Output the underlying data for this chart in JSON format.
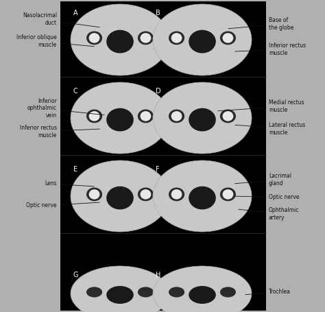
{
  "background_color": "#000000",
  "label_color": "#000000",
  "panel_label_color": "#333333",
  "figure_bg": "#d0d0d0",
  "title": "",
  "panels": [
    {
      "label": "A",
      "col": 0,
      "row": 0
    },
    {
      "label": "B",
      "col": 1,
      "row": 0
    },
    {
      "label": "C",
      "col": 0,
      "row": 1
    },
    {
      "label": "D",
      "col": 1,
      "row": 1
    },
    {
      "label": "E",
      "col": 0,
      "row": 2
    },
    {
      "label": "F",
      "col": 1,
      "row": 2
    },
    {
      "label": "G",
      "col": 0,
      "row": 3
    },
    {
      "label": "H",
      "col": 1,
      "row": 3
    }
  ],
  "left_annotations": [
    {
      "row": 0,
      "lines": [
        "Nasolacrimal\nduct",
        "Inferior oblique\nmuscle"
      ]
    },
    {
      "row": 1,
      "lines": [
        "Inferior\nophthalmic\nvein",
        "Inferior rectus\nmuscle"
      ]
    },
    {
      "row": 2,
      "lines": [
        "Lens",
        "Optic nerve"
      ]
    },
    {
      "row": 3,
      "lines": []
    }
  ],
  "right_annotations": [
    {
      "row": 0,
      "lines": [
        "Base of\nthe globe",
        "Inferior rectus\nmuscle"
      ]
    },
    {
      "row": 1,
      "lines": [
        "Medial rectus\nmuscle",
        "Lateral rectus\nmuscle"
      ]
    },
    {
      "row": 2,
      "lines": [
        "Lacrimal\ngland",
        "Optic nerve",
        "Ophthalmic\nartery"
      ]
    },
    {
      "row": 3,
      "lines": [
        "Trochlea"
      ]
    }
  ],
  "font_size": 5.5,
  "panel_font_size": 7
}
